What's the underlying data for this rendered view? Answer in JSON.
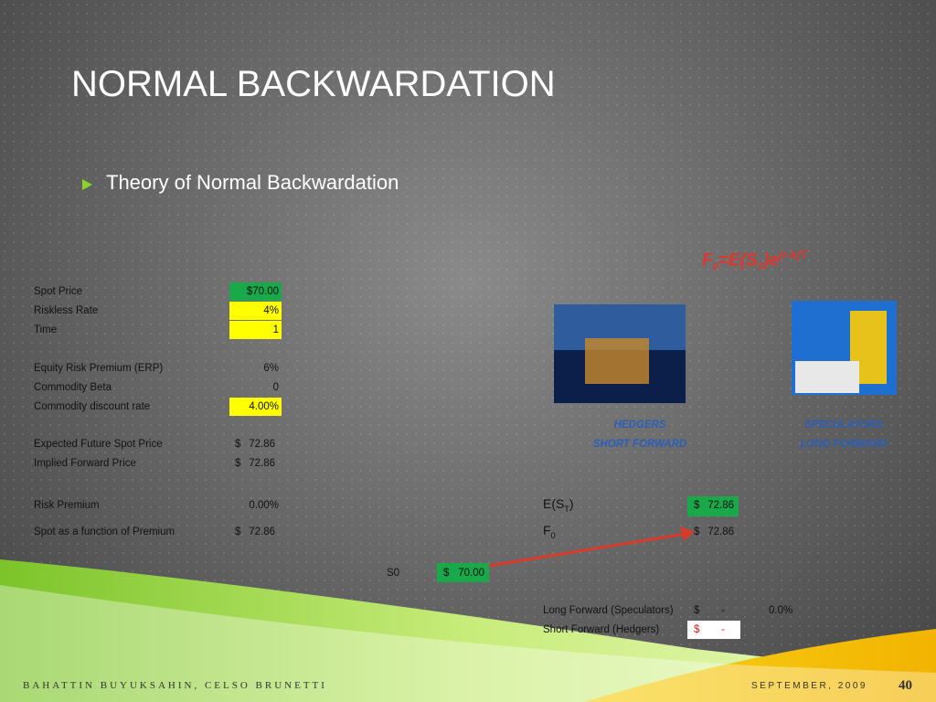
{
  "header": {
    "title": "NORMAL BACKWARDATION",
    "bullet": "Theory of Normal Backwardation"
  },
  "formula": {
    "f": "F",
    "f_sub": "0",
    "mid": "=E(S",
    "s_sub": "T",
    "end": ")e",
    "exp": "(r-k)T"
  },
  "inputs": {
    "rows": [
      {
        "label": "Spot Price",
        "value": "$70.00"
      },
      {
        "label": "Riskless Rate",
        "value": "4%"
      },
      {
        "label": "Time",
        "value": "1"
      },
      {
        "label": "Equity Risk Premium (ERP)",
        "value": "6%"
      },
      {
        "label": "Commodity Beta",
        "value": "0"
      },
      {
        "label": "Commodity discount rate",
        "value": "4.00%"
      },
      {
        "label": "Expected Future Spot Price",
        "currency": "$",
        "value": "72.86"
      },
      {
        "label": "Implied Forward Price",
        "currency": "$",
        "value": "72.86"
      },
      {
        "label": "Risk Premium",
        "value": "0.00%"
      },
      {
        "label": "Spot as a function of Premium",
        "currency": "$",
        "value": "72.86"
      }
    ]
  },
  "images": [
    {
      "title": "HEDGERS",
      "subtitle": "SHORT FORWARD"
    },
    {
      "title": "SPECULATORS",
      "subtitle": "LONG FORWARD"
    }
  ],
  "results": {
    "est": {
      "label": "E(S",
      "sub": "T",
      "close": ")",
      "currency": "$",
      "value": "72.86"
    },
    "f0": {
      "label": "F",
      "sub": "0",
      "currency": "$",
      "value": "72.86"
    },
    "s0": {
      "label": "S0",
      "currency": "$",
      "value": "70.00"
    },
    "long": {
      "label": "Long Forward (Speculators)",
      "currency": "$",
      "value": "-",
      "pct": "0.0%"
    },
    "short": {
      "label": "Short Forward (Hedgers)",
      "currency": "$",
      "value": "-"
    }
  },
  "footer": {
    "authors": "BAHATTIN BUYUKSAHIN, CELSO BRUNETTI",
    "date": "SEPTEMBER, 2009",
    "page": "40"
  }
}
